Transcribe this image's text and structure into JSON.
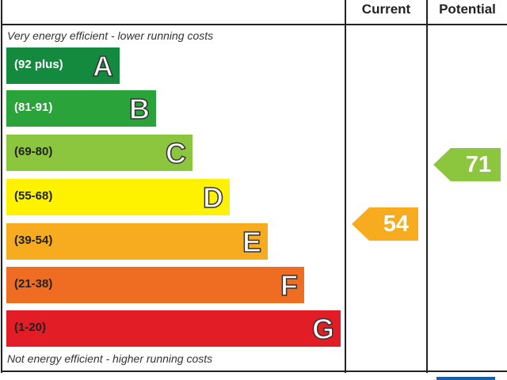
{
  "header": {
    "current": "Current",
    "potential": "Potential"
  },
  "notes": {
    "top": "Very energy efficient - lower running costs",
    "bottom": "Not energy efficient - higher running costs"
  },
  "chart_data": {
    "type": "bar",
    "bands": [
      {
        "letter": "A",
        "range": "(92 plus)",
        "color": "#138a3e",
        "text_color": "#ffffff"
      },
      {
        "letter": "B",
        "range": "(81-91)",
        "color": "#2aa33b",
        "text_color": "#ffffff"
      },
      {
        "letter": "C",
        "range": "(69-80)",
        "color": "#8cc63f",
        "text_color": "#222222"
      },
      {
        "letter": "D",
        "range": "(55-68)",
        "color": "#fff200",
        "text_color": "#222222"
      },
      {
        "letter": "E",
        "range": "(39-54)",
        "color": "#f7ac20",
        "text_color": "#222222"
      },
      {
        "letter": "F",
        "range": "(21-38)",
        "color": "#ef6d22",
        "text_color": "#222222"
      },
      {
        "letter": "G",
        "range": "(1-20)",
        "color": "#e31d25",
        "text_color": "#222222"
      }
    ],
    "current": {
      "value": "54",
      "band": "E",
      "color": "#f7ac20"
    },
    "potential": {
      "value": "71",
      "band": "C",
      "color": "#8cc63f"
    }
  }
}
